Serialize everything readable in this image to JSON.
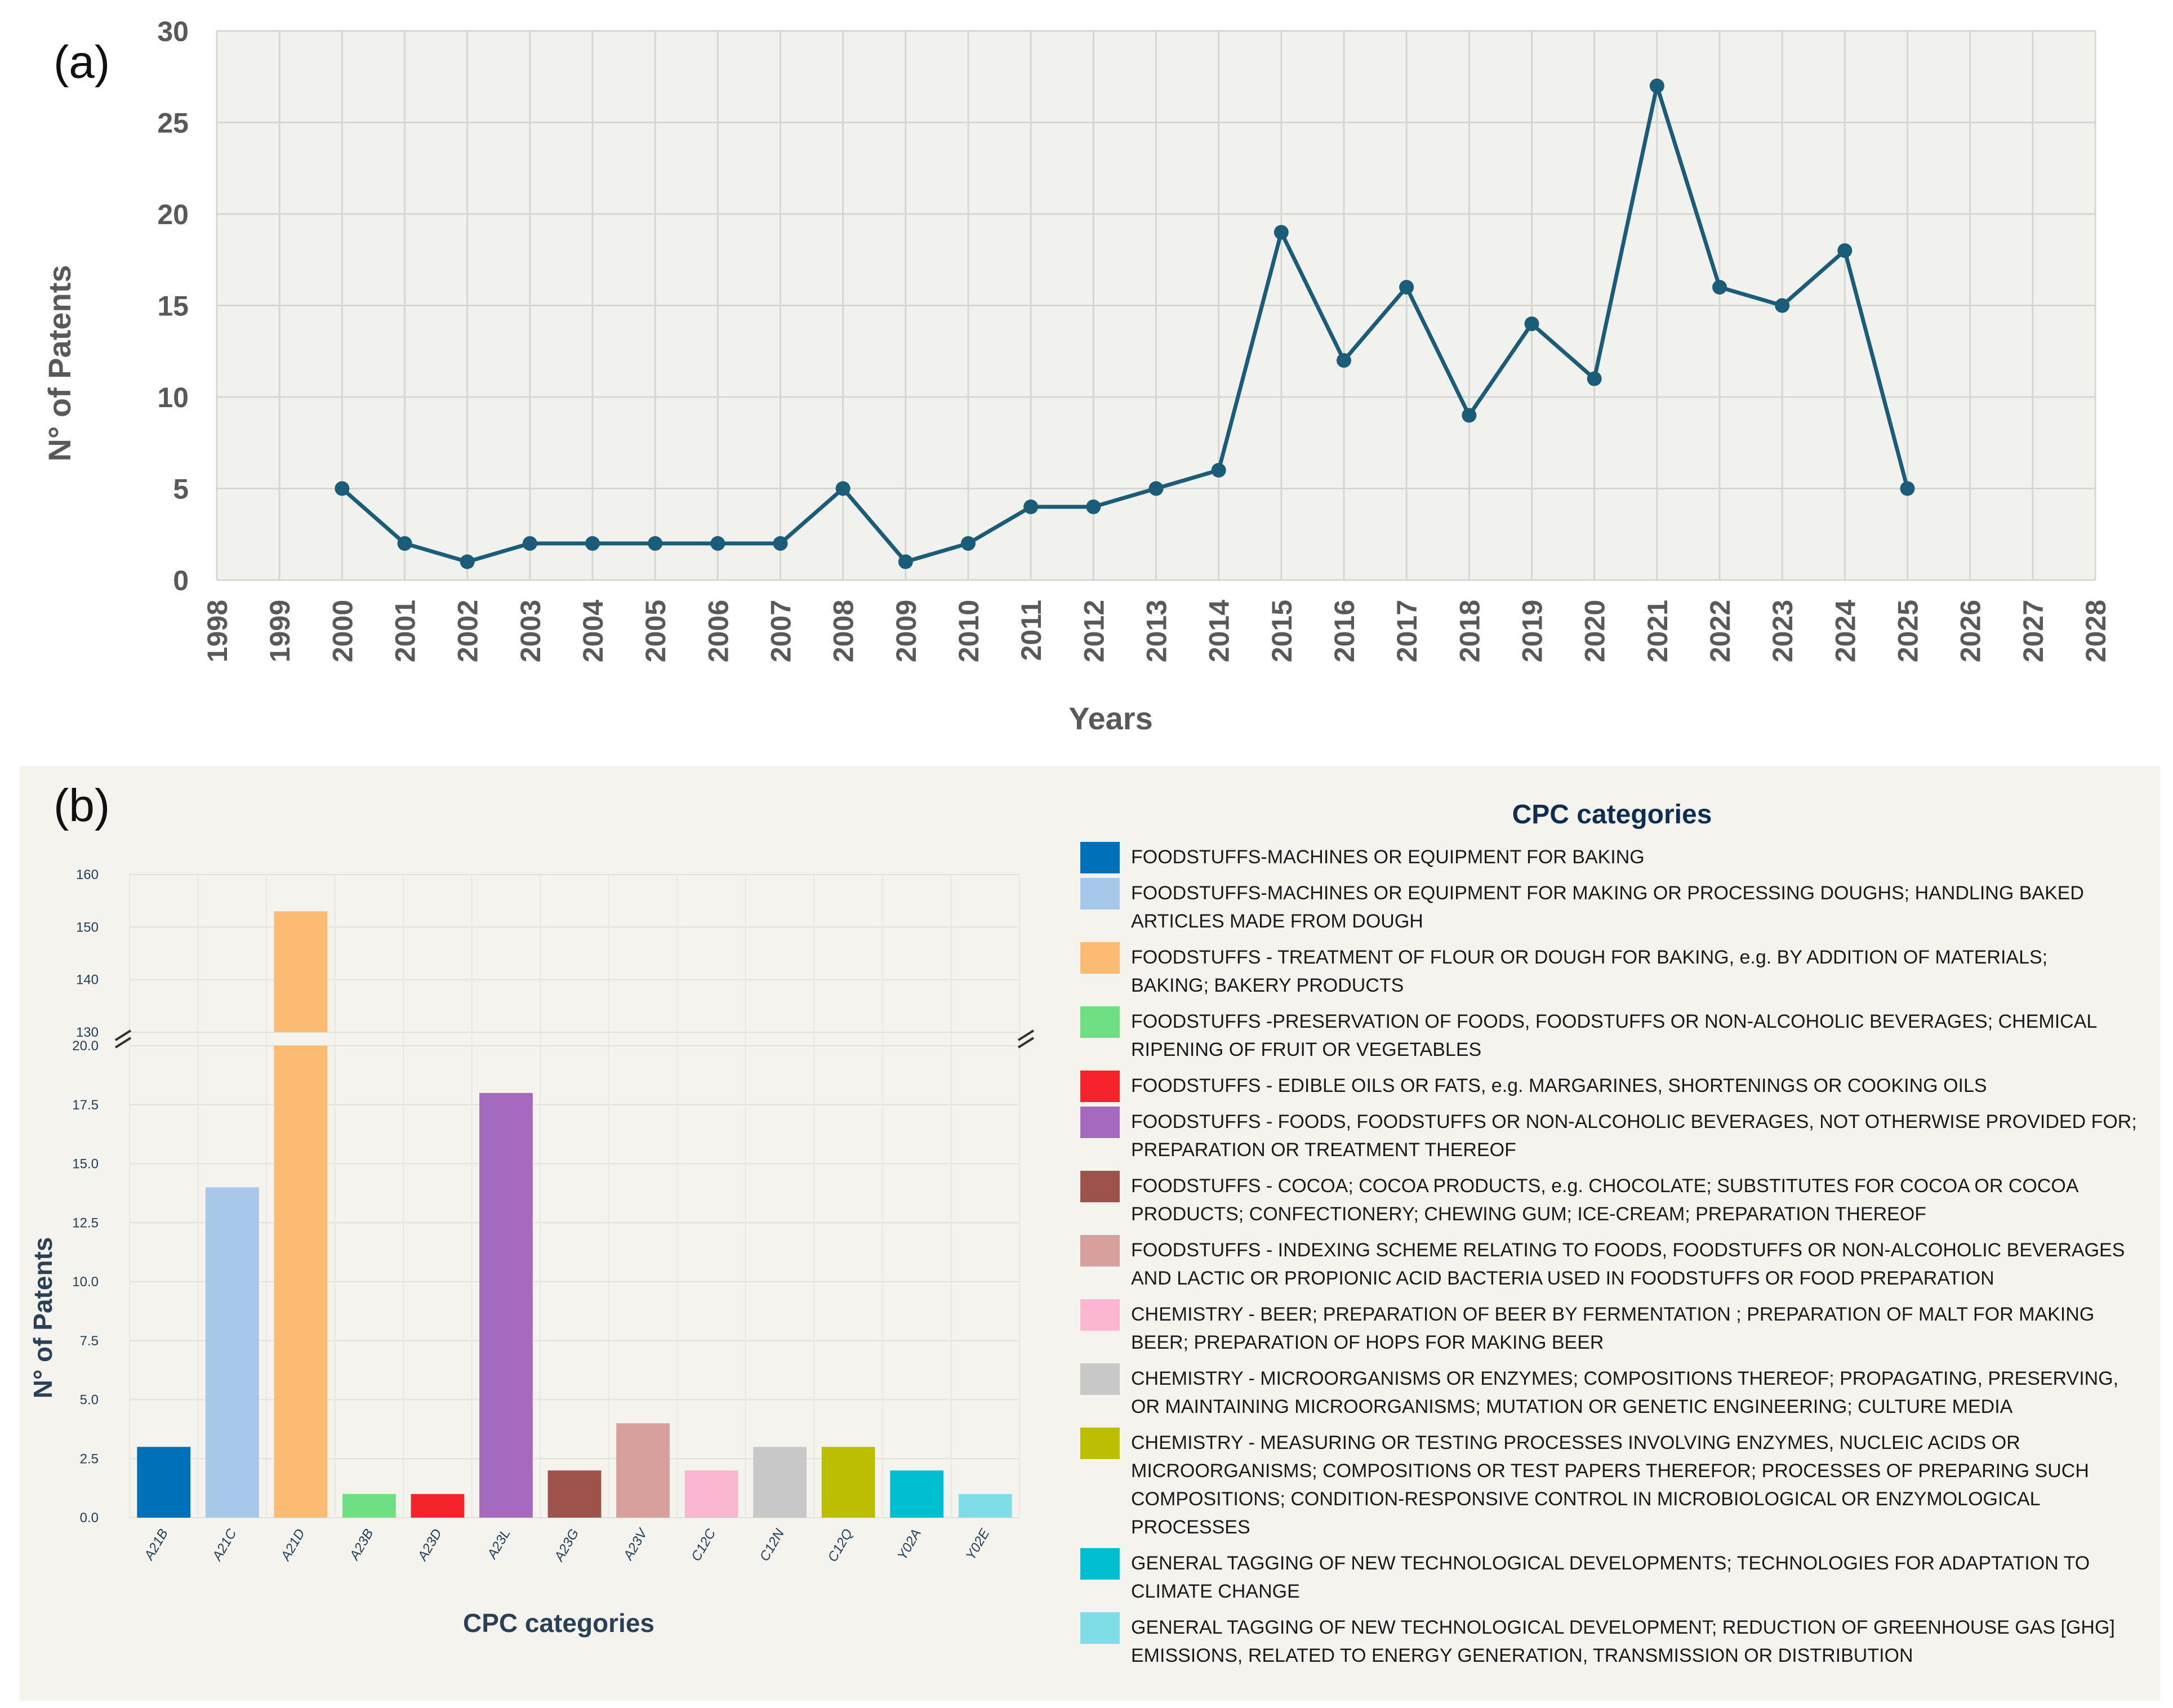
{
  "panel_labels": {
    "a": "(a)",
    "b": "(b)"
  },
  "chart_data": [
    {
      "type": "line",
      "title": "",
      "xlabel": "Years",
      "ylabel": "N° of Patents",
      "xlim": [
        1998,
        2028
      ],
      "ylim": [
        0,
        30
      ],
      "x_ticks": [
        "1998",
        "1999",
        "2000",
        "2001",
        "2002",
        "2003",
        "2004",
        "2005",
        "2006",
        "2007",
        "2008",
        "2009",
        "2010",
        "2011",
        "2012",
        "2013",
        "2014",
        "2015",
        "2016",
        "2017",
        "2018",
        "2019",
        "2020",
        "2021",
        "2022",
        "2023",
        "2024",
        "2025",
        "2026",
        "2027",
        "2028"
      ],
      "y_ticks": [
        "0",
        "5",
        "10",
        "15",
        "20",
        "25",
        "30"
      ],
      "grid": true,
      "color": "#1b5c78",
      "x": [
        2000,
        2001,
        2002,
        2003,
        2004,
        2005,
        2006,
        2007,
        2008,
        2009,
        2010,
        2011,
        2012,
        2013,
        2014,
        2015,
        2016,
        2017,
        2018,
        2019,
        2020,
        2021,
        2022,
        2023,
        2024,
        2025
      ],
      "y": [
        5,
        2,
        1,
        2,
        2,
        2,
        2,
        2,
        5,
        1,
        2,
        4,
        4,
        5,
        6,
        19,
        12,
        16,
        9,
        14,
        11,
        27,
        16,
        15,
        18,
        5
      ]
    },
    {
      "type": "bar",
      "title": "",
      "xlabel": "CPC categories",
      "ylabel": "N° of Patents",
      "axis_break": {
        "lower_ylim": [
          0,
          20
        ],
        "upper_ylim": [
          130,
          160
        ]
      },
      "y_ticks_lower": [
        "0.0",
        "2.5",
        "5.0",
        "7.5",
        "10.0",
        "12.5",
        "15.0",
        "17.5",
        "20.0"
      ],
      "y_ticks_upper": [
        "130",
        "140",
        "150",
        "160"
      ],
      "categories": [
        "A21B",
        "A21C",
        "A21D",
        "A23B",
        "A23D",
        "A23L",
        "A23G",
        "A23V",
        "C12C",
        "C12N",
        "C12Q",
        "Y02A",
        "Y02E"
      ],
      "values": [
        3,
        14,
        153,
        1,
        1,
        18,
        2,
        4,
        2,
        3,
        3,
        2,
        1
      ],
      "colors": [
        "#0070b8",
        "#a8c8ea",
        "#fbbb72",
        "#6fdf83",
        "#f5242a",
        "#a569c0",
        "#9d524a",
        "#d7a09c",
        "#f9b7d2",
        "#c8c8c8",
        "#bcbe00",
        "#00bfd1",
        "#7fdde8"
      ],
      "legend_title": "CPC categories",
      "legend": [
        "FOODSTUFFS-MACHINES OR EQUIPMENT FOR BAKING",
        "FOODSTUFFS-MACHINES OR EQUIPMENT FOR MAKING OR PROCESSING DOUGHS; HANDLING BAKED ARTICLES MADE FROM DOUGH",
        "FOODSTUFFS - TREATMENT OF FLOUR OR DOUGH FOR BAKING, e.g. BY ADDITION OF MATERIALS; BAKING; BAKERY PRODUCTS",
        "FOODSTUFFS -PRESERVATION OF FOODS, FOODSTUFFS OR NON-ALCOHOLIC BEVERAGES; CHEMICAL RIPENING OF FRUIT OR VEGETABLES",
        "FOODSTUFFS - EDIBLE OILS OR FATS, e.g. MARGARINES, SHORTENINGS OR COOKING OILS",
        "FOODSTUFFS - FOODS, FOODSTUFFS OR NON-ALCOHOLIC BEVERAGES, NOT OTHERWISE PROVIDED FOR; PREPARATION OR TREATMENT THEREOF",
        "FOODSTUFFS - COCOA; COCOA PRODUCTS, e.g. CHOCOLATE; SUBSTITUTES FOR COCOA OR COCOA PRODUCTS; CONFECTIONERY; CHEWING GUM; ICE-CREAM; PREPARATION THEREOF",
        "FOODSTUFFS - INDEXING SCHEME RELATING TO FOODS, FOODSTUFFS OR NON-ALCOHOLIC BEVERAGES AND LACTIC OR PROPIONIC ACID BACTERIA USED IN FOODSTUFFS OR FOOD PREPARATION",
        "CHEMISTRY - BEER; PREPARATION OF BEER BY FERMENTATION ; PREPARATION OF MALT FOR MAKING BEER; PREPARATION OF HOPS FOR MAKING BEER",
        "CHEMISTRY - MICROORGANISMS OR ENZYMES; COMPOSITIONS THEREOF; PROPAGATING, PRESERVING, OR MAINTAINING MICROORGANISMS; MUTATION OR GENETIC ENGINEERING; CULTURE MEDIA",
        "CHEMISTRY - MEASURING OR TESTING PROCESSES INVOLVING ENZYMES, NUCLEIC ACIDS OR MICROORGANISMS; COMPOSITIONS OR TEST PAPERS THEREFOR; PROCESSES OF PREPARING SUCH COMPOSITIONS; CONDITION-RESPONSIVE CONTROL IN MICROBIOLOGICAL OR ENZYMOLOGICAL PROCESSES",
        "GENERAL TAGGING OF NEW TECHNOLOGICAL DEVELOPMENTS; TECHNOLOGIES FOR ADAPTATION TO CLIMATE CHANGE",
        "GENERAL TAGGING OF NEW TECHNOLOGICAL DEVELOPMENT; REDUCTION OF GREENHOUSE GAS [GHG] EMISSIONS, RELATED TO ENERGY GENERATION, TRANSMISSION OR DISTRIBUTION"
      ]
    }
  ]
}
